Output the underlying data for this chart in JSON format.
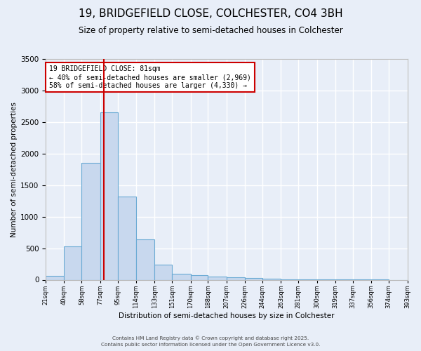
{
  "title": "19, BRIDGEFIELD CLOSE, COLCHESTER, CO4 3BH",
  "subtitle": "Size of property relative to semi-detached houses in Colchester",
  "xlabel": "Distribution of semi-detached houses by size in Colchester",
  "ylabel": "Number of semi-detached properties",
  "bar_color": "#c8d8ee",
  "bar_edge_color": "#6aaad4",
  "background_color": "#e8eef8",
  "grid_color": "#ffffff",
  "bin_labels": [
    "21sqm",
    "40sqm",
    "58sqm",
    "77sqm",
    "95sqm",
    "114sqm",
    "133sqm",
    "151sqm",
    "170sqm",
    "188sqm",
    "207sqm",
    "226sqm",
    "244sqm",
    "263sqm",
    "281sqm",
    "300sqm",
    "319sqm",
    "337sqm",
    "356sqm",
    "374sqm",
    "393sqm"
  ],
  "bar_heights": [
    60,
    525,
    1850,
    2650,
    1320,
    640,
    240,
    100,
    70,
    50,
    40,
    25,
    15,
    8,
    5,
    3,
    2,
    1,
    1,
    0
  ],
  "bin_edges": [
    21,
    40,
    58,
    77,
    95,
    114,
    133,
    151,
    170,
    188,
    207,
    226,
    244,
    263,
    281,
    300,
    319,
    337,
    356,
    374,
    393
  ],
  "property_size": 81,
  "vline_color": "#cc0000",
  "annotation_label": "19 BRIDGEFIELD CLOSE: 81sqm",
  "annotation_smaller": "← 40% of semi-detached houses are smaller (2,969)",
  "annotation_larger": "58% of semi-detached houses are larger (4,330) →",
  "annotation_box_color": "#ffffff",
  "annotation_box_edge": "#cc0000",
  "ylim": [
    0,
    3500
  ],
  "footer1": "Contains HM Land Registry data © Crown copyright and database right 2025.",
  "footer2": "Contains public sector information licensed under the Open Government Licence v3.0.",
  "title_fontsize": 11,
  "subtitle_fontsize": 8.5
}
